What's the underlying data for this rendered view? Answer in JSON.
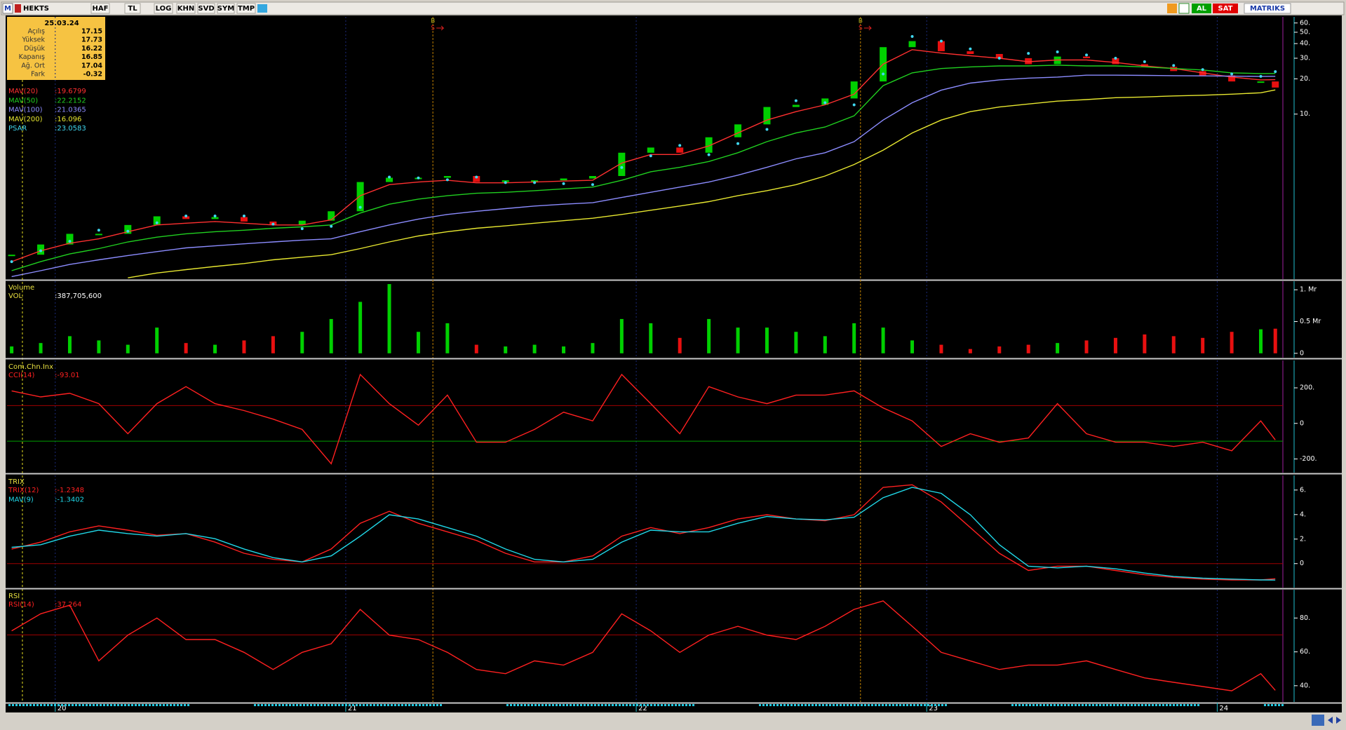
{
  "toolbar": {
    "logo": "M",
    "symbol": "HEKTS",
    "buttons": [
      "HAF",
      "TL",
      "LOG",
      "KHN",
      "SVD",
      "SYM",
      "TMP"
    ],
    "trade_buttons": [
      "AL",
      "SAT"
    ],
    "brand": "MATRIKS"
  },
  "info_box": {
    "date": "25.03.24",
    "rows": [
      {
        "label": "Açılış",
        "value": 17.15
      },
      {
        "label": "Yüksek",
        "value": 17.73
      },
      {
        "label": "Düşük",
        "value": 16.22
      },
      {
        "label": "Kapanış",
        "value": 16.85
      },
      {
        "label": "Ağ. Ort",
        "value": 17.04
      },
      {
        "label": "Fark",
        "value": -0.32
      }
    ]
  },
  "chart_data": [
    {
      "type": "candlestick",
      "log": true,
      "up_color": "#00d000",
      "down_color": "#e81010",
      "xlim": [
        19.834,
        24.226
      ],
      "xticks": [
        20,
        21,
        22,
        23,
        24
      ],
      "cursor_x": 19.887,
      "signals": [
        {
          "x": 21.3,
          "label": "B",
          "sub": "S"
        },
        {
          "x": 22.772,
          "label": "B",
          "sub": "S"
        }
      ],
      "ylim": [
        0.39,
        67.7
      ],
      "yticks": [
        {
          "value": 60,
          "label": "60."
        },
        {
          "value": 50,
          "label": "50."
        },
        {
          "value": 40,
          "label": "40."
        },
        {
          "value": 30,
          "label": "30."
        },
        {
          "value": 20,
          "label": "20."
        },
        {
          "value": 10,
          "label": "10."
        }
      ],
      "x": [
        19.85,
        19.95,
        20.05,
        20.15,
        20.25,
        20.35,
        20.45,
        20.55,
        20.65,
        20.75,
        20.85,
        20.95,
        21.05,
        21.15,
        21.25,
        21.35,
        21.45,
        21.55,
        21.65,
        21.75,
        21.85,
        21.95,
        22.05,
        22.15,
        22.25,
        22.35,
        22.45,
        22.55,
        22.65,
        22.75,
        22.85,
        22.95,
        23.05,
        23.15,
        23.25,
        23.35,
        23.45,
        23.55,
        23.65,
        23.75,
        23.85,
        23.95,
        24.05,
        24.15,
        24.2
      ],
      "values": [
        0.63,
        0.77,
        0.95,
        0.95,
        1.13,
        1.34,
        1.27,
        1.32,
        1.21,
        1.13,
        1.23,
        1.48,
        2.63,
        2.86,
        2.86,
        2.96,
        2.63,
        2.72,
        2.72,
        2.82,
        2.96,
        4.68,
        5.18,
        4.68,
        6.34,
        8.17,
        11.5,
        12.0,
        13.6,
        19.0,
        37.3,
        42.0,
        34.4,
        32.6,
        30.0,
        26.7,
        31.0,
        30.0,
        26.7,
        25.3,
        23.3,
        21.4,
        19.0,
        19.0,
        16.85
      ],
      "series": [
        {
          "name": "MAV(20)",
          "readout": ":19.6799",
          "color": "#ff3030",
          "style": "line",
          "values": [
            0.55,
            0.68,
            0.79,
            0.86,
            0.99,
            1.13,
            1.17,
            1.21,
            1.17,
            1.13,
            1.13,
            1.25,
            2.01,
            2.5,
            2.63,
            2.72,
            2.59,
            2.59,
            2.63,
            2.68,
            2.72,
            3.82,
            4.52,
            4.52,
            5.35,
            6.9,
            8.89,
            10.5,
            12.0,
            14.8,
            26.7,
            35.5,
            33.2,
            31.5,
            30.0,
            28.0,
            29.0,
            29.0,
            27.6,
            25.8,
            24.5,
            22.5,
            20.7,
            19.6,
            19.68
          ]
        },
        {
          "name": "MAV(50)",
          "readout": ":22.2152",
          "color": "#20d020",
          "style": "line",
          "values": [
            0.46,
            0.55,
            0.64,
            0.71,
            0.81,
            0.89,
            0.95,
            0.99,
            1.02,
            1.06,
            1.09,
            1.13,
            1.43,
            1.7,
            1.88,
            2.01,
            2.11,
            2.15,
            2.22,
            2.3,
            2.38,
            2.72,
            3.22,
            3.51,
            3.94,
            4.68,
            5.82,
            6.9,
            7.76,
            9.66,
            17.5,
            22.5,
            24.5,
            25.3,
            25.8,
            25.8,
            26.2,
            25.8,
            25.8,
            25.3,
            24.5,
            23.8,
            22.5,
            22.2,
            22.22
          ]
        },
        {
          "name": "MAV(100)",
          "readout": ":21.0365",
          "color": "#8c8cff",
          "style": "line",
          "values": [
            0.41,
            0.46,
            0.52,
            0.57,
            0.62,
            0.67,
            0.72,
            0.75,
            0.78,
            0.81,
            0.84,
            0.86,
            0.99,
            1.13,
            1.27,
            1.39,
            1.48,
            1.56,
            1.64,
            1.7,
            1.75,
            1.94,
            2.15,
            2.38,
            2.63,
            3.01,
            3.51,
            4.15,
            4.68,
            5.82,
            8.89,
            12.5,
            16.0,
            18.4,
            19.6,
            20.3,
            20.7,
            21.5,
            21.5,
            21.4,
            21.3,
            21.2,
            21.1,
            21.0,
            21.04
          ]
        },
        {
          "name": "MAV(200)",
          "readout": ":16.096",
          "color": "#e8e830",
          "style": "line",
          "values": [
            null,
            null,
            null,
            null,
            0.4,
            0.44,
            0.47,
            0.5,
            0.53,
            0.57,
            0.6,
            0.63,
            0.71,
            0.81,
            0.91,
            0.99,
            1.06,
            1.11,
            1.17,
            1.23,
            1.29,
            1.39,
            1.51,
            1.64,
            1.79,
            2.01,
            2.22,
            2.5,
            2.96,
            3.71,
            4.92,
            6.9,
            8.89,
            10.5,
            11.5,
            12.2,
            12.9,
            13.3,
            13.8,
            14.0,
            14.3,
            14.5,
            14.8,
            15.2,
            16.096
          ]
        },
        {
          "name": "PSAR",
          "readout": ":23.0583",
          "color": "#40d8f0",
          "style": "dots",
          "values": [
            0.55,
            0.68,
            0.82,
            1.02,
            1.0,
            1.18,
            1.35,
            1.35,
            1.35,
            1.15,
            1.05,
            1.1,
            1.6,
            2.9,
            2.85,
            2.75,
            2.9,
            2.6,
            2.6,
            2.55,
            2.5,
            3.5,
            4.4,
            5.4,
            4.5,
            5.6,
            7.4,
            13.0,
            12.5,
            12.0,
            22,
            46,
            42,
            36,
            30,
            33,
            34,
            32,
            30,
            28,
            26,
            24,
            22,
            21,
            23.06
          ]
        }
      ]
    },
    {
      "type": "bar",
      "title": "Volume",
      "xlim": [
        19.834,
        24.226
      ],
      "xticks": [
        20,
        21,
        22,
        23,
        24
      ],
      "ylim": [
        -68000000,
        1135000000
      ],
      "yticks": [
        {
          "value": 1000000000,
          "label": "1. Mr"
        },
        {
          "value": 500000000,
          "label": "0.5 Mr"
        },
        0
      ],
      "x": [
        19.85,
        19.95,
        20.05,
        20.15,
        20.25,
        20.35,
        20.45,
        20.55,
        20.65,
        20.75,
        20.85,
        20.95,
        21.05,
        21.15,
        21.25,
        21.35,
        21.45,
        21.55,
        21.65,
        21.75,
        21.85,
        21.95,
        22.05,
        22.15,
        22.25,
        22.35,
        22.45,
        22.55,
        22.65,
        22.75,
        22.85,
        22.95,
        23.05,
        23.15,
        23.25,
        23.35,
        23.45,
        23.55,
        23.65,
        23.75,
        23.85,
        23.95,
        24.05,
        24.15,
        24.2
      ],
      "series": [
        {
          "name": "VOL",
          "readout": ":387,705,600",
          "color": "#ffffff",
          "style": "bar",
          "values": [
            108000000,
            162000000,
            270000000,
            203000000,
            135000000,
            405000000,
            162000000,
            135000000,
            203000000,
            270000000,
            338000000,
            540000000,
            810000000,
            1090000000,
            338000000,
            473000000,
            135000000,
            108000000,
            135000000,
            108000000,
            162000000,
            540000000,
            473000000,
            243000000,
            540000000,
            405000000,
            405000000,
            338000000,
            270000000,
            473000000,
            405000000,
            203000000,
            135000000,
            68000000,
            108000000,
            135000000,
            162000000,
            203000000,
            243000000,
            297000000,
            270000000,
            243000000,
            338000000,
            378000000,
            387705600
          ]
        }
      ]
    },
    {
      "type": "line",
      "title": "Com.Chn.Inx",
      "xlim": [
        19.834,
        24.226
      ],
      "xticks": [
        20,
        21,
        22,
        23,
        24
      ],
      "ylim": [
        -277,
        354
      ],
      "yticks": [
        {
          "value": 200,
          "label": "200."
        },
        0,
        {
          "value": -200,
          "label": "-200."
        }
      ],
      "ref_lines": [
        {
          "value": 100,
          "color": "#a00000"
        },
        {
          "value": -100,
          "color": "#00a000"
        }
      ],
      "x": [
        19.85,
        19.95,
        20.05,
        20.15,
        20.25,
        20.35,
        20.45,
        20.55,
        20.65,
        20.75,
        20.85,
        20.95,
        21.05,
        21.15,
        21.25,
        21.35,
        21.45,
        21.55,
        21.65,
        21.75,
        21.85,
        21.95,
        22.05,
        22.15,
        22.25,
        22.35,
        22.45,
        22.55,
        22.65,
        22.75,
        22.85,
        22.95,
        23.05,
        23.15,
        23.25,
        23.35,
        23.45,
        23.55,
        23.65,
        23.75,
        23.85,
        23.95,
        24.05,
        24.15,
        24.2
      ],
      "series": [
        {
          "name": "CCI(14)",
          "readout": ":-93.01",
          "color": "#ff2020",
          "style": "line",
          "values": [
            183,
            149,
            169,
            111,
            -58,
            111,
            207,
            111,
            72,
            24,
            -34,
            -227,
            275,
            111,
            -10,
            159,
            -106,
            -106,
            -34,
            63,
            14,
            275,
            111,
            -58,
            207,
            149,
            111,
            159,
            159,
            183,
            87,
            14,
            -130,
            -58,
            -106,
            -82,
            111,
            -58,
            -106,
            -106,
            -130,
            -106,
            -154,
            14,
            -93.01
          ]
        }
      ]
    },
    {
      "type": "line",
      "title": "TRIX",
      "xlim": [
        19.834,
        24.226
      ],
      "xticks": [
        20,
        21,
        22,
        23,
        24
      ],
      "ylim": [
        -1.96,
        7.19
      ],
      "yticks": [
        {
          "value": 6,
          "label": "6."
        },
        {
          "value": 4,
          "label": "4."
        },
        {
          "value": 2,
          "label": "2."
        },
        0
      ],
      "ref_lines": [
        {
          "value": 0,
          "color": "#a00000"
        }
      ],
      "x": [
        19.85,
        19.95,
        20.05,
        20.15,
        20.25,
        20.35,
        20.45,
        20.55,
        20.65,
        20.75,
        20.85,
        20.95,
        21.05,
        21.15,
        21.25,
        21.35,
        21.45,
        21.55,
        21.65,
        21.75,
        21.85,
        21.95,
        22.05,
        22.15,
        22.25,
        22.35,
        22.45,
        22.55,
        22.65,
        22.75,
        22.85,
        22.95,
        23.05,
        23.15,
        23.25,
        23.35,
        23.45,
        23.55,
        23.65,
        23.75,
        23.85,
        23.95,
        24.05,
        24.15,
        24.2
      ],
      "series": [
        {
          "name": "TRIX(12)",
          "readout": ":-1.2348",
          "color": "#ff2020",
          "style": "line",
          "values": [
            1.19,
            1.75,
            2.59,
            3.08,
            2.73,
            2.31,
            2.45,
            1.75,
            0.84,
            0.35,
            0.14,
            1.19,
            3.29,
            4.27,
            3.29,
            2.59,
            1.89,
            0.84,
            0.14,
            0.14,
            0.63,
            2.24,
            2.94,
            2.45,
            2.94,
            3.64,
            3.99,
            3.64,
            3.5,
            3.99,
            6.22,
            6.43,
            5.03,
            2.94,
            0.84,
            -0.56,
            -0.21,
            -0.21,
            -0.56,
            -0.91,
            -1.12,
            -1.26,
            -1.33,
            -1.33,
            -1.2348
          ]
        },
        {
          "name": "MAV(9)",
          "readout": ":-1.3402",
          "color": "#20d8e8",
          "style": "line",
          "values": [
            1.33,
            1.54,
            2.24,
            2.73,
            2.45,
            2.24,
            2.45,
            2.03,
            1.19,
            0.49,
            0.14,
            0.63,
            2.24,
            3.99,
            3.64,
            2.94,
            2.24,
            1.19,
            0.35,
            0.14,
            0.35,
            1.75,
            2.73,
            2.59,
            2.59,
            3.29,
            3.85,
            3.64,
            3.57,
            3.78,
            5.38,
            6.22,
            5.73,
            3.99,
            1.54,
            -0.21,
            -0.35,
            -0.21,
            -0.42,
            -0.77,
            -1.05,
            -1.19,
            -1.26,
            -1.33,
            -1.3402
          ]
        }
      ]
    },
    {
      "type": "line",
      "title": "RSI",
      "xlim": [
        19.834,
        24.226
      ],
      "xticks": [
        20,
        21,
        22,
        23,
        24
      ],
      "ylim": [
        30.4,
        96.7
      ],
      "yticks": [
        {
          "value": 80,
          "label": "80."
        },
        {
          "value": 60,
          "label": "60."
        },
        {
          "value": 40,
          "label": "40."
        }
      ],
      "ref_lines": [
        {
          "value": 70,
          "color": "#a00000"
        }
      ],
      "x": [
        19.85,
        19.95,
        20.05,
        20.15,
        20.25,
        20.35,
        20.45,
        20.55,
        20.65,
        20.75,
        20.85,
        20.95,
        21.05,
        21.15,
        21.25,
        21.35,
        21.45,
        21.55,
        21.65,
        21.75,
        21.85,
        21.95,
        22.05,
        22.15,
        22.25,
        22.35,
        22.45,
        22.55,
        22.65,
        22.75,
        22.85,
        22.95,
        23.05,
        23.15,
        23.25,
        23.35,
        23.45,
        23.55,
        23.65,
        23.75,
        23.85,
        23.95,
        24.05,
        24.15,
        24.2
      ],
      "series": [
        {
          "name": "RSI(14)",
          "readout": ":37.264",
          "color": "#ff2020",
          "style": "line",
          "values": [
            72.4,
            82.5,
            87.6,
            54.7,
            69.9,
            80,
            67.3,
            67.3,
            59.7,
            49.6,
            59.7,
            64.8,
            85.1,
            69.9,
            67.3,
            59.7,
            49.6,
            47.1,
            54.7,
            52.2,
            59.7,
            82.5,
            72.4,
            59.7,
            69.9,
            75.1,
            69.9,
            67.3,
            75.1,
            85.1,
            90.1,
            75.1,
            59.7,
            54.7,
            49.6,
            52.2,
            52.2,
            54.7,
            49.6,
            44.6,
            42.0,
            39.5,
            37.0,
            47.1,
            37.264
          ]
        }
      ]
    }
  ]
}
